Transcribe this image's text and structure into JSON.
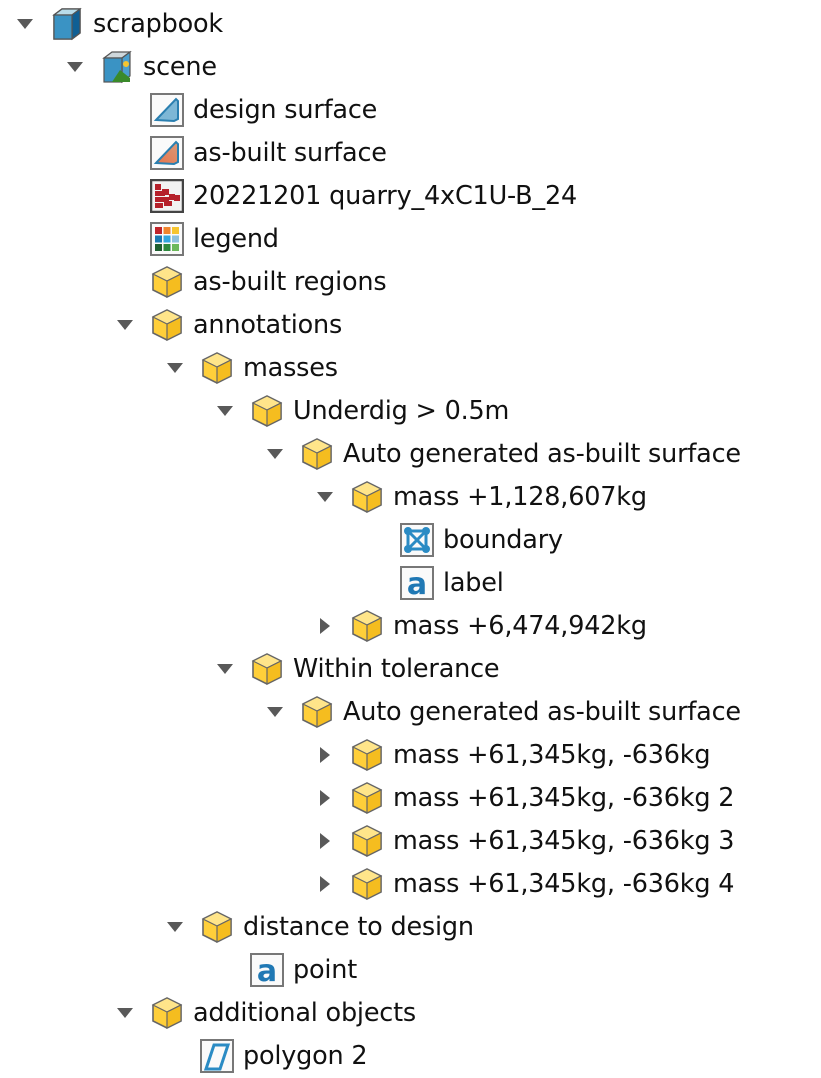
{
  "tree": {
    "items": [
      {
        "label": "scrapbook",
        "level": 0,
        "state": "expanded",
        "icon": "scrapbook-icon"
      },
      {
        "label": "scene",
        "level": 1,
        "state": "expanded",
        "icon": "scene-icon"
      },
      {
        "label": "design surface",
        "level": 2,
        "state": "leaf",
        "icon": "design-surface-icon"
      },
      {
        "label": "as-built surface",
        "level": 2,
        "state": "leaf",
        "icon": "as-built-surface-icon"
      },
      {
        "label": "20221201 quarry_4xC1U-B_24",
        "level": 2,
        "state": "leaf",
        "icon": "blast-pattern-icon"
      },
      {
        "label": "legend",
        "level": 2,
        "state": "leaf",
        "icon": "legend-icon"
      },
      {
        "label": "as-built regions",
        "level": 2,
        "state": "leaf",
        "icon": "folder-cube-icon"
      },
      {
        "label": "annotations",
        "level": 2,
        "state": "expanded",
        "icon": "folder-cube-icon"
      },
      {
        "label": "masses",
        "level": 3,
        "state": "expanded",
        "icon": "folder-cube-icon"
      },
      {
        "label": "Underdig > 0.5m",
        "level": 4,
        "state": "expanded",
        "icon": "folder-cube-icon"
      },
      {
        "label": "Auto generated as-built surface",
        "level": 5,
        "state": "expanded",
        "icon": "folder-cube-icon"
      },
      {
        "label": "mass +1,128,607kg",
        "level": 6,
        "state": "expanded",
        "icon": "folder-cube-icon"
      },
      {
        "label": "boundary",
        "level": 7,
        "state": "leaf",
        "icon": "boundary-icon"
      },
      {
        "label": "label",
        "level": 7,
        "state": "leaf",
        "icon": "label-icon"
      },
      {
        "label": "mass +6,474,942kg",
        "level": 6,
        "state": "collapsed",
        "icon": "folder-cube-icon"
      },
      {
        "label": "Within tolerance",
        "level": 4,
        "state": "expanded",
        "icon": "folder-cube-icon"
      },
      {
        "label": "Auto generated as-built surface",
        "level": 5,
        "state": "expanded",
        "icon": "folder-cube-icon"
      },
      {
        "label": "mass +61,345kg, -636kg",
        "level": 6,
        "state": "collapsed",
        "icon": "folder-cube-icon"
      },
      {
        "label": "mass +61,345kg, -636kg 2",
        "level": 6,
        "state": "collapsed",
        "icon": "folder-cube-icon"
      },
      {
        "label": "mass +61,345kg, -636kg 3",
        "level": 6,
        "state": "collapsed",
        "icon": "folder-cube-icon"
      },
      {
        "label": "mass +61,345kg, -636kg 4",
        "level": 6,
        "state": "collapsed",
        "icon": "folder-cube-icon"
      },
      {
        "label": "distance to design",
        "level": 3,
        "state": "expanded",
        "icon": "folder-cube-icon"
      },
      {
        "label": "point",
        "level": 4,
        "state": "leaf",
        "icon": "label-icon"
      },
      {
        "label": "additional objects",
        "level": 2,
        "state": "expanded",
        "icon": "folder-cube-icon"
      },
      {
        "label": "polygon 2",
        "level": 3,
        "state": "leaf",
        "icon": "polygon-icon"
      }
    ]
  },
  "colors": {
    "arrow": "#595959",
    "folder": "#ffcf3a",
    "scrapbook": "#1f78b4",
    "text": "#111111"
  }
}
